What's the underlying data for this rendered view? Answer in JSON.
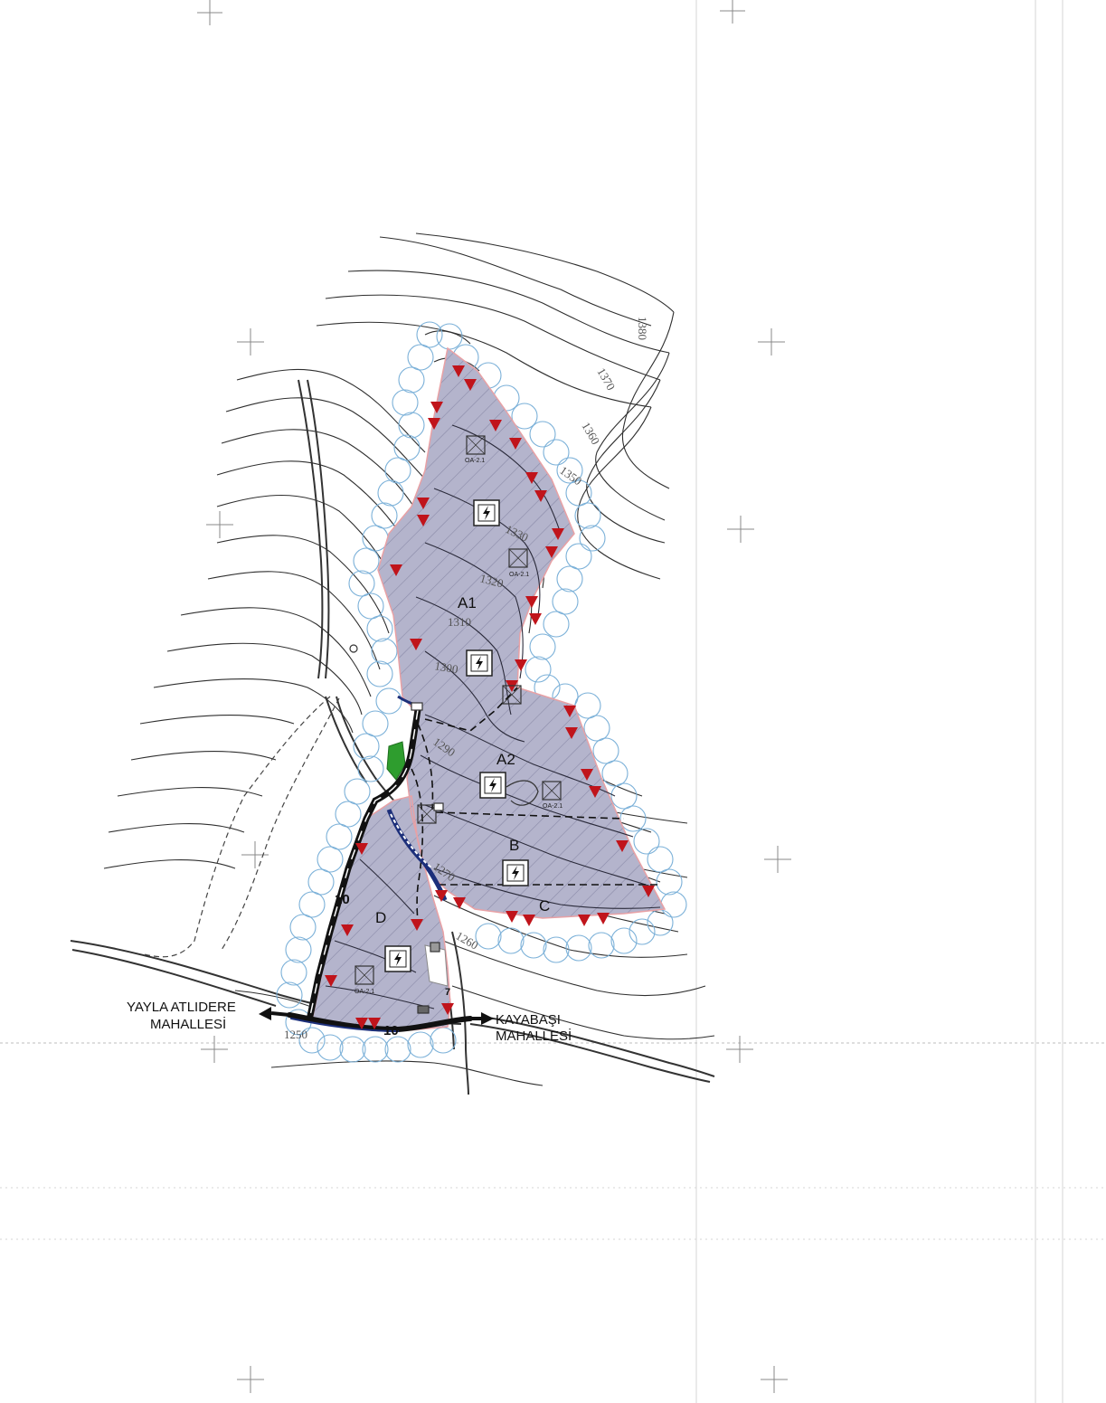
{
  "zones": [
    {
      "id": "A1",
      "label": "A1"
    },
    {
      "id": "A2",
      "label": "A2"
    },
    {
      "id": "B",
      "label": "B"
    },
    {
      "id": "C",
      "label": "C"
    },
    {
      "id": "D",
      "label": "D"
    }
  ],
  "contours": [
    "1380",
    "1370",
    "1360",
    "1350",
    "1330",
    "1320",
    "1310",
    "1300",
    "1290",
    "1270",
    "1260",
    "1250"
  ],
  "places": {
    "west_line1": "YAYLA ATLIDERE",
    "west_line2": "MAHALLESİ",
    "east_line1": "KAYABAŞI",
    "east_line2": "MAHALLESİ"
  },
  "roads": {
    "width_north": "10",
    "width_south": "10",
    "width_short": "7"
  },
  "symbol_codes": [
    "OA-2.1",
    "OA-2.1",
    "OA-2.1",
    "OA-2.1"
  ],
  "colors": {
    "zone_fill": "#b4b4cc",
    "hatch": "#8a8aa8",
    "boundary": "#e8a1a5",
    "triangle": "#c0141b",
    "buffer_circle": "#7ab0d8",
    "contour": "#2f2f2f",
    "road": "#111111",
    "stream": "#1c2f7a",
    "green_patch": "#2e9d2e"
  },
  "icons": [
    "lightning-icon",
    "wind-turbine-symbol",
    "hatched-box-symbol",
    "road-arrow-icon",
    "crosshair-mark"
  ]
}
